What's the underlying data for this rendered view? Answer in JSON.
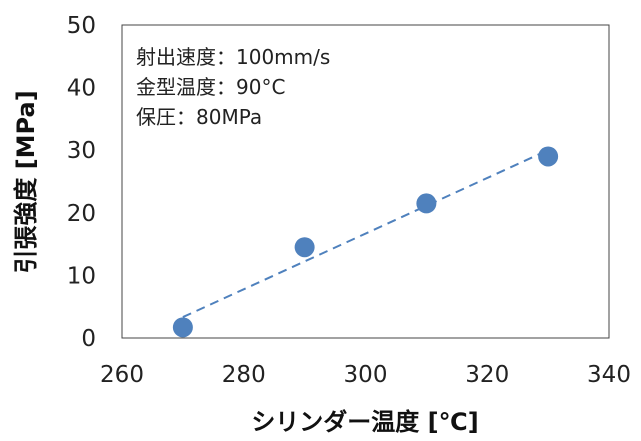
{
  "chart_data": {
    "type": "scatter",
    "xlabel": "シリンダー温度 [℃]",
    "ylabel": "引張強度 [MPa]",
    "xlim": [
      260,
      340
    ],
    "ylim": [
      0,
      50
    ],
    "x_ticks": [
      "260",
      "280",
      "300",
      "320",
      "340"
    ],
    "y_ticks": [
      "0",
      "10",
      "20",
      "30",
      "40",
      "50"
    ],
    "series": [
      {
        "x": [
          270,
          290,
          310,
          330
        ],
        "y": [
          1.7,
          14.5,
          21.5,
          29.0
        ],
        "color": "#4F81BD"
      }
    ],
    "trendline": {
      "type": "linear",
      "style": "dashed",
      "color": "#4F81BD"
    },
    "annotations": [
      "射出速度：100mm/s",
      "金型温度：90°C",
      "保圧：80MPa"
    ],
    "grid": false,
    "legend": "none"
  }
}
